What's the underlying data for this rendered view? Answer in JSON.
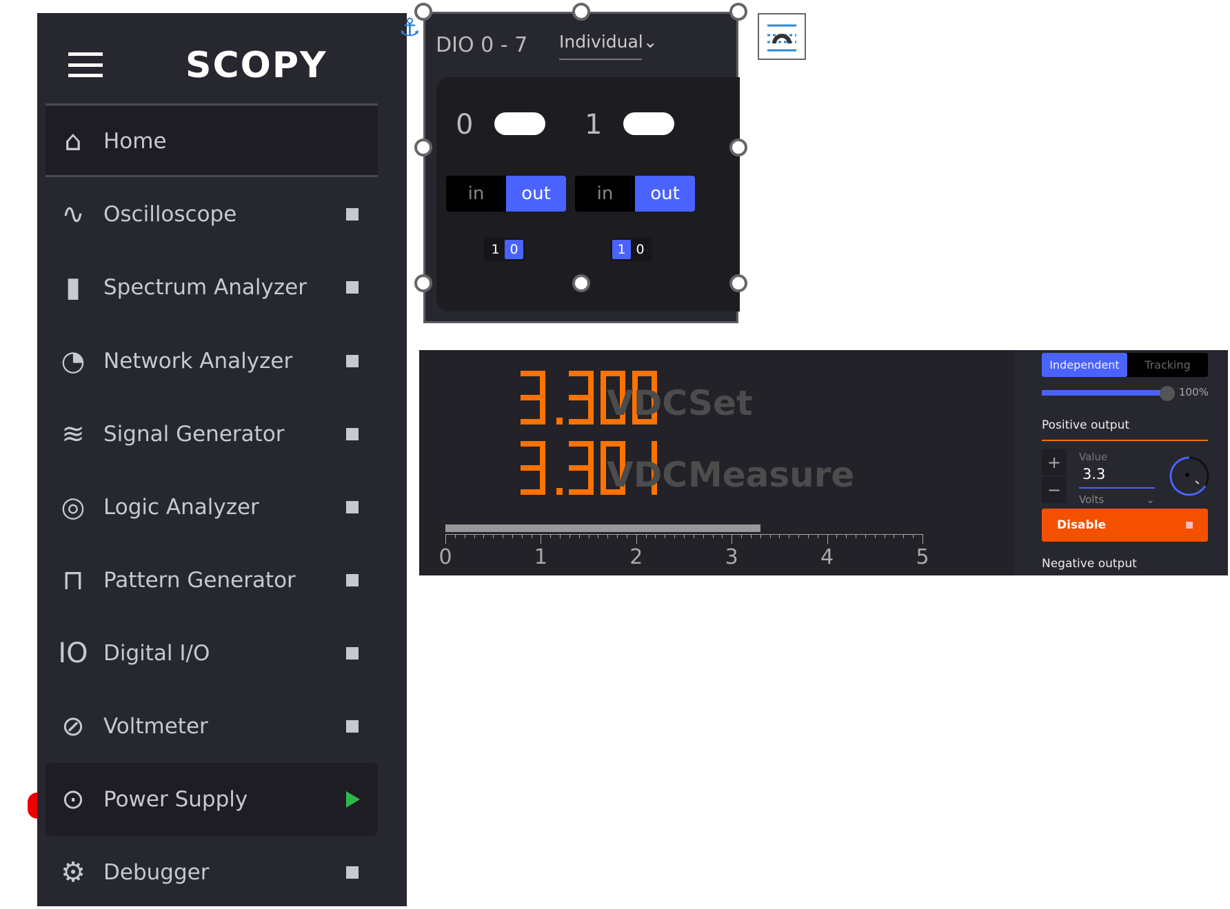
{
  "sidebar": {
    "logo": "SCOPY",
    "items": [
      {
        "label": "Home",
        "icon": "home-icon",
        "state": "none"
      },
      {
        "label": "Oscilloscope",
        "icon": "oscilloscope-icon",
        "state": "stopped"
      },
      {
        "label": "Spectrum Analyzer",
        "icon": "spectrum-icon",
        "state": "stopped"
      },
      {
        "label": "Network Analyzer",
        "icon": "network-icon",
        "state": "stopped"
      },
      {
        "label": "Signal Generator",
        "icon": "signal-icon",
        "state": "stopped"
      },
      {
        "label": "Logic Analyzer",
        "icon": "logic-icon",
        "state": "stopped"
      },
      {
        "label": "Pattern Generator",
        "icon": "pattern-icon",
        "state": "stopped"
      },
      {
        "label": "Digital I/O",
        "icon": "dio-icon",
        "state": "stopped"
      },
      {
        "label": "Voltmeter",
        "icon": "voltmeter-icon",
        "state": "stopped"
      },
      {
        "label": "Power Supply",
        "icon": "power-icon",
        "state": "running"
      },
      {
        "label": "Debugger",
        "icon": "gear-icon",
        "state": "stopped"
      }
    ]
  },
  "dio": {
    "title": "DIO 0 - 7",
    "mode": "Individual",
    "channels": [
      {
        "num": "0",
        "in": "in",
        "out": "out",
        "dir": "out",
        "bit1": "1",
        "bit0": "0",
        "value": "0"
      },
      {
        "num": "1",
        "in": "in",
        "out": "out",
        "dir": "out",
        "bit1": "1",
        "bit0": "0",
        "value": "1"
      }
    ]
  },
  "power": {
    "set_value": "3.300",
    "set_unit": "VDC",
    "set_label": "Set",
    "measure_value": "3.301",
    "measure_unit": "VDC",
    "measure_label": "Measure",
    "scale": {
      "min": 0,
      "max": 5,
      "ticks": [
        "0",
        "1",
        "2",
        "3",
        "4",
        "5"
      ],
      "level": 3.3
    },
    "mode_independent": "Independent",
    "mode_tracking": "Tracking",
    "tracking_ratio": "100%",
    "tracking_fraction": 1.0,
    "positive_output": "Positive output",
    "value_label": "Value",
    "value": "3.3",
    "unit": "Volts",
    "plus": "+",
    "minus": "−",
    "disable_label": "Disable",
    "negative_output": "Negative output"
  },
  "colors": {
    "accent": "#4a63ff",
    "orange": "#ff7200",
    "disable": "#f55000",
    "running": "#2db84b"
  }
}
